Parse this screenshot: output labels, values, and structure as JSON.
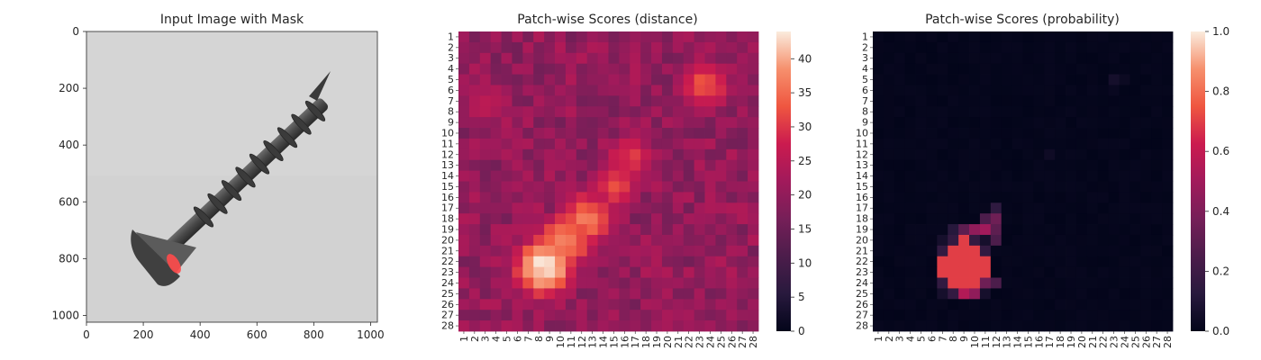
{
  "chart_data": [
    {
      "type": "image",
      "title": "Input Image with Mask",
      "xticks": [
        0,
        200,
        400,
        600,
        800,
        1000
      ],
      "yticks": [
        0,
        200,
        400,
        600,
        800,
        1000
      ],
      "xlim": [
        0,
        1024
      ],
      "ylim": [
        1024,
        0
      ],
      "content": "grayscale photo of a screw lying diagonally, head at lower-left, tip at upper-right",
      "mask": {
        "color": "#ff4a4a",
        "location": "on screw head near (300, 800)"
      }
    },
    {
      "type": "heatmap",
      "title": "Patch-wise Scores (distance)",
      "xticks": [
        "1",
        "2",
        "3",
        "4",
        "5",
        "6",
        "7",
        "8",
        "9",
        "10",
        "11",
        "12",
        "13",
        "14",
        "15",
        "16",
        "17",
        "18",
        "19",
        "20",
        "21",
        "22",
        "23",
        "24",
        "25",
        "26",
        "27",
        "28"
      ],
      "yticks": [
        "1",
        "2",
        "3",
        "4",
        "5",
        "6",
        "7",
        "8",
        "9",
        "10",
        "11",
        "12",
        "13",
        "14",
        "15",
        "16",
        "17",
        "18",
        "19",
        "20",
        "21",
        "22",
        "23",
        "24",
        "25",
        "26",
        "27",
        "28"
      ],
      "colormap": "rocket",
      "colorbar": {
        "min": 0,
        "max": 44,
        "ticks": [
          0,
          5,
          10,
          15,
          20,
          25,
          30,
          35,
          40
        ]
      },
      "background_level": 20,
      "hotspots": [
        {
          "row": 22.5,
          "col": 8.5,
          "value": 44
        },
        {
          "row": 20,
          "col": 10.5,
          "value": 38
        },
        {
          "row": 18,
          "col": 12.5,
          "value": 36
        },
        {
          "row": 15,
          "col": 15,
          "value": 31
        },
        {
          "row": 12.5,
          "col": 16.5,
          "value": 30
        },
        {
          "row": 5.5,
          "col": 23.5,
          "value": 33
        },
        {
          "row": 7,
          "col": 3,
          "value": 26
        }
      ]
    },
    {
      "type": "heatmap",
      "title": "Patch-wise Scores (probability)",
      "xticks": [
        "1",
        "2",
        "3",
        "4",
        "5",
        "6",
        "7",
        "8",
        "9",
        "10",
        "11",
        "12",
        "13",
        "14",
        "15",
        "16",
        "17",
        "18",
        "19",
        "20",
        "21",
        "22",
        "23",
        "24",
        "25",
        "26",
        "27",
        "28"
      ],
      "yticks": [
        "1",
        "2",
        "3",
        "4",
        "5",
        "6",
        "7",
        "8",
        "9",
        "10",
        "11",
        "12",
        "13",
        "14",
        "15",
        "16",
        "17",
        "18",
        "19",
        "20",
        "21",
        "22",
        "23",
        "24",
        "25",
        "26",
        "27",
        "28"
      ],
      "colormap": "rocket",
      "colorbar": {
        "min": 0.0,
        "max": 1.0,
        "ticks": [
          "0.0",
          "0.2",
          "0.4",
          "0.6",
          "0.8",
          "1.0"
        ]
      },
      "hotspot": {
        "rows": [
          20,
          25
        ],
        "cols": [
          7,
          11
        ],
        "peak_value": 0.7
      },
      "hotspot_cells": [
        {
          "row": 5,
          "col": 23,
          "value": 0.06
        },
        {
          "row": 5,
          "col": 24,
          "value": 0.03
        },
        {
          "row": 6,
          "col": 23,
          "value": 0.02
        },
        {
          "row": 12,
          "col": 17,
          "value": 0.04
        },
        {
          "row": 17,
          "col": 12,
          "value": 0.15
        },
        {
          "row": 18,
          "col": 11,
          "value": 0.25
        },
        {
          "row": 18,
          "col": 12,
          "value": 0.35
        },
        {
          "row": 19,
          "col": 8,
          "value": 0.12
        },
        {
          "row": 19,
          "col": 9,
          "value": 0.3
        },
        {
          "row": 19,
          "col": 10,
          "value": 0.45
        },
        {
          "row": 19,
          "col": 11,
          "value": 0.5
        },
        {
          "row": 19,
          "col": 12,
          "value": 0.3
        },
        {
          "row": 20,
          "col": 12,
          "value": 0.25
        },
        {
          "row": 24,
          "col": 12,
          "value": 0.25
        },
        {
          "row": 24,
          "col": 11,
          "value": 0.35
        },
        {
          "row": 25,
          "col": 9,
          "value": 0.55
        },
        {
          "row": 25,
          "col": 10,
          "value": 0.45
        }
      ]
    }
  ]
}
